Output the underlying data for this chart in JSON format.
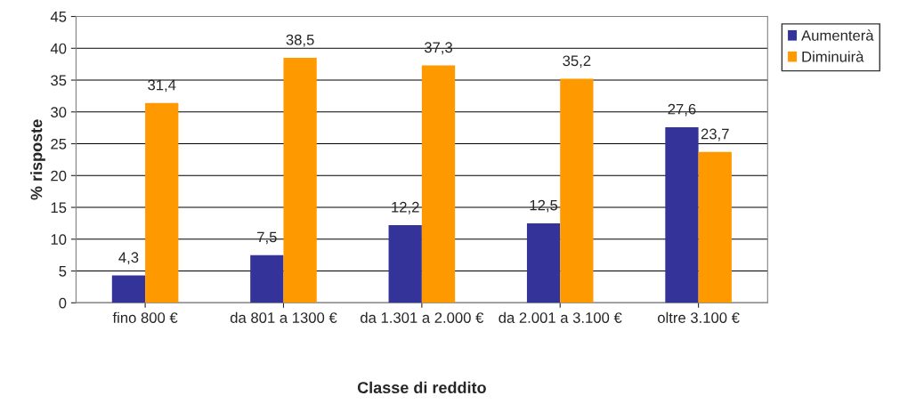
{
  "chart_data": {
    "type": "bar",
    "xlabel": "Classe di reddito",
    "ylabel": "% risposte",
    "categories": [
      "fino 800 €",
      "da 801 a 1300 €",
      "da 1.301 a 2.000 €",
      "da 2.001 a 3.100 €",
      "oltre 3.100 €"
    ],
    "series": [
      {
        "name": "Aumenterà",
        "color": "#333399",
        "values": [
          4.3,
          7.5,
          12.2,
          12.5,
          27.6
        ],
        "value_labels": [
          "4,3",
          "7,5",
          "12,2",
          "12,5",
          "27,6"
        ]
      },
      {
        "name": "Diminuirà",
        "color": "#ff9900",
        "values": [
          31.4,
          38.5,
          37.3,
          35.2,
          23.7
        ],
        "value_labels": [
          "31,4",
          "38,5",
          "37,3",
          "35,2",
          "23,7"
        ]
      }
    ],
    "ylim": [
      0,
      45
    ],
    "yticks": [
      0,
      5,
      10,
      15,
      20,
      25,
      30,
      35,
      40,
      45
    ],
    "grid": "y",
    "legend": "right"
  }
}
